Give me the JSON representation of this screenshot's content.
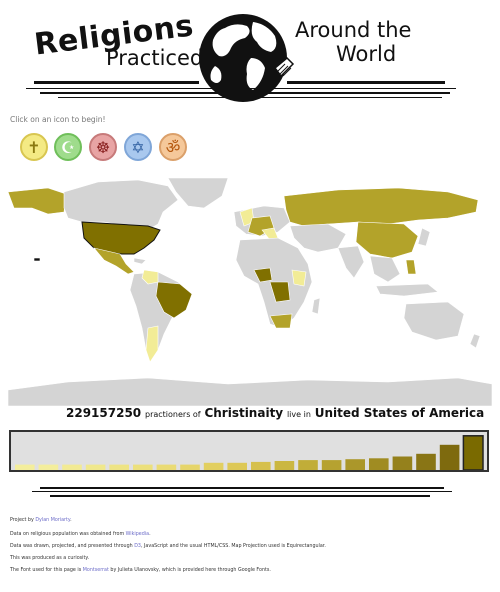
{
  "header": {
    "title": "Religions",
    "subtitle_left": "Practiced",
    "subtitle_right_line1": "Around the",
    "subtitle_right_line2": "World"
  },
  "instructions": "Click on an icon to begin!",
  "icons": [
    {
      "name": "christianity",
      "icon": "cross-icon",
      "glyph": "✝",
      "bg": "#f4ea84",
      "border": "#d8c650",
      "color": "#8a7a10"
    },
    {
      "name": "islam",
      "icon": "crescent-star-icon",
      "glyph": "☪",
      "bg": "#9fdc8c",
      "border": "#6fbf5a",
      "color": "#ffffff"
    },
    {
      "name": "buddhism",
      "icon": "dharma-wheel-icon",
      "glyph": "☸",
      "bg": "#e8a4a4",
      "border": "#c77a7a",
      "color": "#8a2020"
    },
    {
      "name": "judaism",
      "icon": "star-of-david-icon",
      "glyph": "✡",
      "bg": "#a9c8ee",
      "border": "#7fa6d8",
      "color": "#2f5fa0"
    },
    {
      "name": "hinduism",
      "icon": "om-icon",
      "glyph": "ॐ",
      "bg": "#f5c89a",
      "border": "#dba06a",
      "color": "#b5580e"
    }
  ],
  "map_colors": {
    "land": "#d4d4d4",
    "highlight_dark": "#7d6e00",
    "highlight_mid": "#b3a32a",
    "highlight_light": "#f2ec96",
    "selected": "#807000"
  },
  "stat": {
    "count": "229157250",
    "mid1": "practioners of",
    "religion": "Christinaity",
    "mid2": "live in",
    "country": "United States of America"
  },
  "chart_data": {
    "type": "bar",
    "categories": [
      "1",
      "2",
      "3",
      "4",
      "5",
      "6",
      "7",
      "8",
      "9",
      "10",
      "11",
      "12",
      "13",
      "14",
      "15",
      "16",
      "17",
      "18",
      "19",
      "20"
    ],
    "values": [
      6,
      6,
      6,
      6,
      6,
      6,
      6,
      6,
      8,
      8,
      9,
      10,
      11,
      11,
      12,
      13,
      15,
      18,
      28,
      38
    ],
    "colors": [
      "#f4ee9c",
      "#f4ee9c",
      "#f2ea93",
      "#f0e88c",
      "#eee484",
      "#ece07c",
      "#eadb74",
      "#e6d56a",
      "#e2cf60",
      "#ddc856",
      "#d6c04c",
      "#cbb741",
      "#c1ad38",
      "#b6a230",
      "#ab972a",
      "#a08c22",
      "#95811c",
      "#897515",
      "#7e6a0e",
      "#7a6a00"
    ],
    "ylim": [
      0,
      40
    ],
    "grid": false
  },
  "footer": {
    "line1_pre": "Project by",
    "line1_link": "Dylan Moriarty",
    "line1_post": ".",
    "line2_pre": "Data on religious population was obtained from",
    "line2_link": "Wikipedia",
    "line2_post": ".",
    "line3_pre": "Data was drawn, projected, and presented through",
    "line3_link": "D3",
    "line3_post": ", JavaScript and the usual HTML/CSS. Map Projection used is Equirectangular.",
    "line4": "This was produced as a curiosity.",
    "line5_pre": "The Font used for this page is",
    "line5_link": "Montserrat",
    "line5_post": "by Julieta Ulanovsky, which is provided here through Google Fonts."
  }
}
